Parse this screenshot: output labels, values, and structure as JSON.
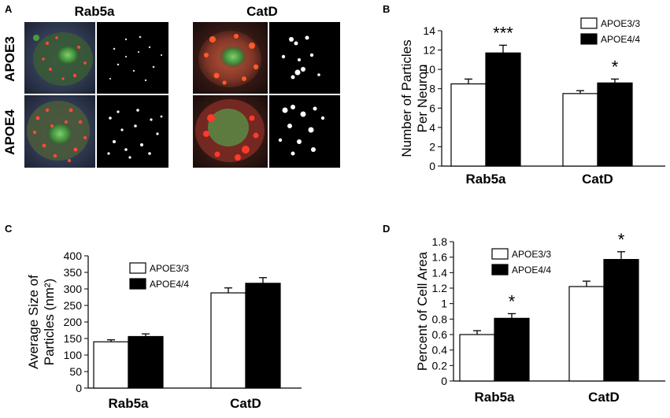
{
  "panel_a": {
    "panel_letter": "A",
    "column_labels": [
      "Rab5a",
      "CatD"
    ],
    "row_labels": [
      "APOE3",
      "APOE4"
    ]
  },
  "chart_data": [
    {
      "panel": "B",
      "type": "bar",
      "categories": [
        "Rab5a",
        "CatD"
      ],
      "series": [
        {
          "name": "APOE3/3",
          "values": [
            8.5,
            7.5
          ],
          "errors": [
            0.5,
            0.3
          ],
          "color": "#ffffff"
        },
        {
          "name": "APOE4/4",
          "values": [
            11.7,
            8.6
          ],
          "errors": [
            0.8,
            0.4
          ],
          "color": "#000000"
        }
      ],
      "ylabel": "Number of Particles\nPer Neuron",
      "xlabel": "",
      "ylim": [
        0,
        14
      ],
      "yticks": [
        "0",
        "2",
        "4",
        "6",
        "8",
        "10",
        "12",
        "14"
      ],
      "annotations": [
        "***",
        "*"
      ],
      "legend": "top-right",
      "grid": false
    },
    {
      "panel": "C",
      "type": "bar",
      "categories": [
        "Rab5a",
        "CatD"
      ],
      "series": [
        {
          "name": "APOE3/3",
          "values": [
            140,
            288
          ],
          "errors": [
            6,
            15
          ],
          "color": "#ffffff"
        },
        {
          "name": "APOE4/4",
          "values": [
            156,
            317
          ],
          "errors": [
            8,
            17
          ],
          "color": "#000000"
        }
      ],
      "ylabel": "Average Size of\nParticles (nm²)",
      "xlabel": "",
      "ylim": [
        0,
        400
      ],
      "yticks": [
        "0",
        "50",
        "100",
        "150",
        "200",
        "250",
        "300",
        "350",
        "400"
      ],
      "annotations": [],
      "legend": "top-left",
      "grid": false
    },
    {
      "panel": "D",
      "type": "bar",
      "categories": [
        "Rab5a",
        "CatD"
      ],
      "series": [
        {
          "name": "APOE3/3",
          "values": [
            0.6,
            1.22
          ],
          "errors": [
            0.05,
            0.07
          ],
          "color": "#ffffff"
        },
        {
          "name": "APOE4/4",
          "values": [
            0.81,
            1.57
          ],
          "errors": [
            0.06,
            0.1
          ],
          "color": "#000000"
        }
      ],
      "ylabel": "Percent of Cell Area",
      "xlabel": "",
      "ylim": [
        0,
        1.8
      ],
      "yticks": [
        "0",
        "0.2",
        "0.4",
        "0.6",
        "0.8",
        "1",
        "1.2",
        "1.4",
        "1.6",
        "1.8"
      ],
      "annotations": [
        "*",
        "*"
      ],
      "legend": "top-left",
      "grid": false
    }
  ]
}
